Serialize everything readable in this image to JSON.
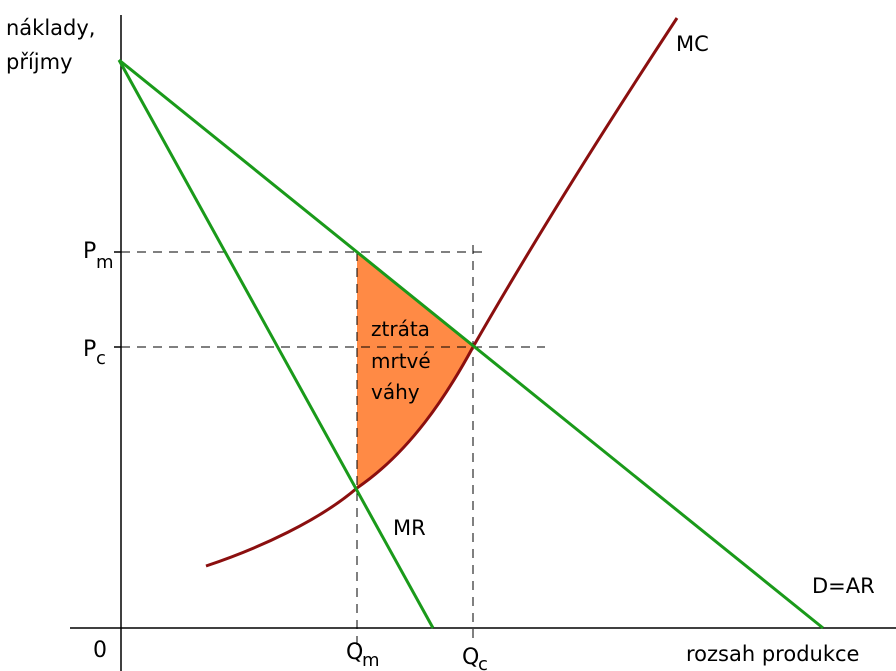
{
  "axes": {
    "y_title_line1": "náklady,",
    "y_title_line2": "příjmy",
    "x_title": "rozsah produkce",
    "origin": "0"
  },
  "ticks": {
    "pm_base": "P",
    "pm_sub": "m",
    "pc_base": "P",
    "pc_sub": "c",
    "qm_base": "Q",
    "qm_sub": "m",
    "qc_base": "Q",
    "qc_sub": "c"
  },
  "curves": {
    "mc": "MC",
    "mr": "MR",
    "demand": "D=AR"
  },
  "deadweight_loss": {
    "line1": "ztráta",
    "line2": "mrtvé",
    "line3": "váhy"
  },
  "colors": {
    "green": "#1a9a1a",
    "maroon": "#8b0f0f",
    "orange": "#ff8a45"
  }
}
